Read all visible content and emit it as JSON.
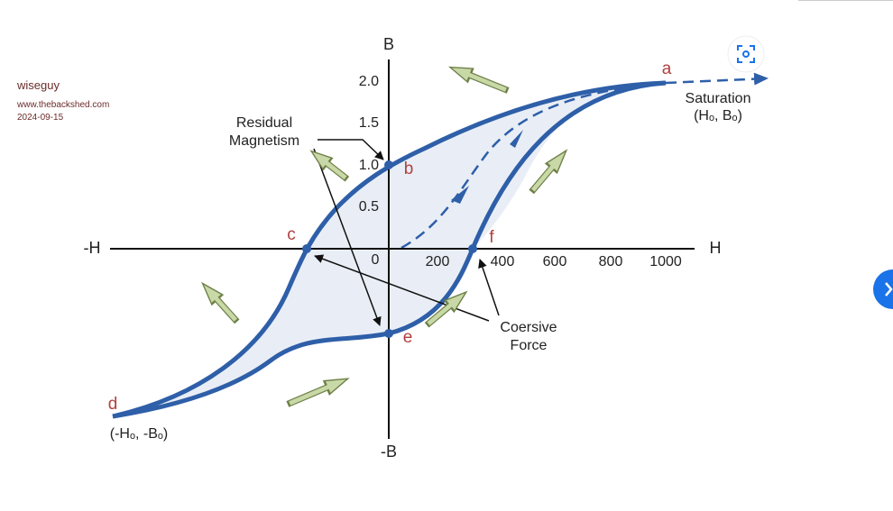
{
  "watermark": {
    "user": "wiseguy",
    "site": "www.thebackshed.com",
    "date": "2024-09-15"
  },
  "axes": {
    "b_top": "B",
    "b_bottom": "-B",
    "h_left": "-H",
    "h_right": "H",
    "b_ticks": [
      "2.0",
      "1.5",
      "1.0",
      "0.5"
    ],
    "origin": "0",
    "h_ticks": [
      "200",
      "400",
      "600",
      "800",
      "1000"
    ]
  },
  "points": {
    "a": "a",
    "b": "b",
    "c": "c",
    "d": "d",
    "e": "e",
    "f": "f"
  },
  "labels": {
    "saturation": "Saturation",
    "saturation_coords": "(Hₒ, Bₒ)",
    "negative_coords": "(-Hₒ, -Bₒ)",
    "residual_1": "Residual",
    "residual_2": "Magnetism",
    "coersive_1": "Coersive",
    "coersive_2": "Force"
  }
}
